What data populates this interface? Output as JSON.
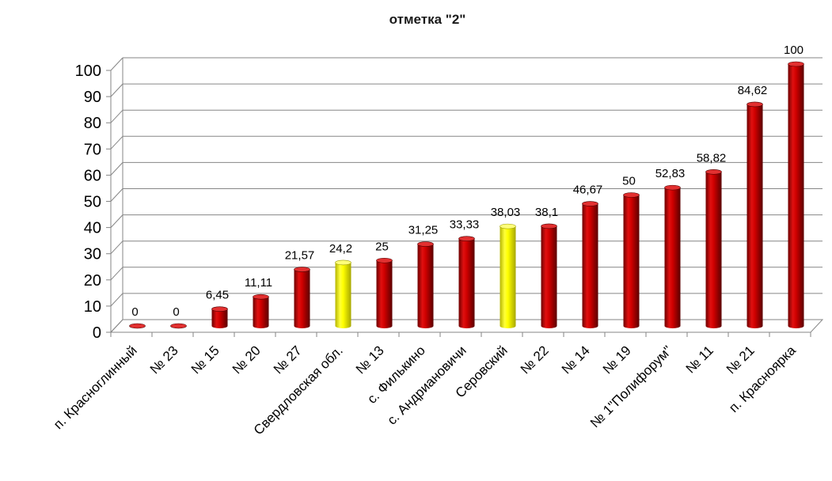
{
  "chart_data": {
    "type": "bar",
    "title": "отметка \"2\"",
    "xlabel": "",
    "ylabel": "",
    "ylim": [
      0,
      100
    ],
    "yticks": [
      0,
      10,
      20,
      30,
      40,
      50,
      60,
      70,
      80,
      90,
      100
    ],
    "grid": true,
    "style": "3d-cylinder",
    "categories": [
      "п. Красноглинный",
      "№ 23",
      "№ 15",
      "№ 20",
      "№ 27",
      "Свердловская обл.",
      "№ 13",
      "с. Филькино",
      "с. Андриановичи",
      "Серовский",
      "№ 22",
      "№ 14",
      "№ 19",
      "№ 1\"Полифорум\"",
      "№ 11",
      "№ 21",
      "п. Красноярка"
    ],
    "values": [
      0,
      0,
      6.45,
      11.11,
      21.57,
      24.2,
      25,
      31.25,
      33.33,
      38.03,
      38.1,
      46.67,
      50,
      52.83,
      58.82,
      84.62,
      100
    ],
    "data_labels": [
      "0",
      "0",
      "6,45",
      "11,11",
      "21,57",
      "24,2",
      "25",
      "31,25",
      "33,33",
      "38,03",
      "38,1",
      "46,67",
      "50",
      "52,83",
      "58,82",
      "84,62",
      "100"
    ],
    "highlighted": [
      "Свердловская обл.",
      "Серовский"
    ],
    "colors": {
      "bar": "#c00000",
      "bar_highlight": "#ffff00",
      "grid": "#868686"
    }
  }
}
